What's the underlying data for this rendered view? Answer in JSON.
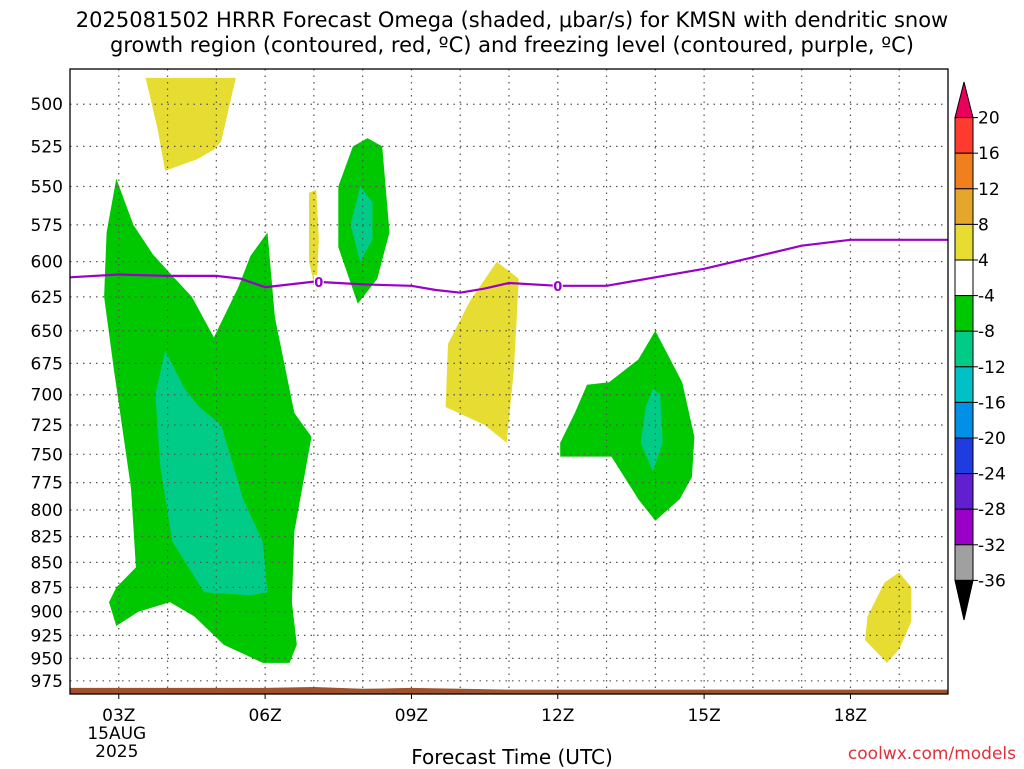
{
  "title": {
    "line1": "2025081502 HRRR Forecast Omega (shaded, μbar/s) for KMSN with dendritic snow",
    "line2": "growth region (contoured, red, ºC) and freezing level (contoured, purple, ºC)"
  },
  "credit": "coolwx.com/models",
  "chart_data": {
    "type": "contour",
    "title": "2025081502 HRRR Forecast Omega (shaded, μbar/s) for KMSN with dendritic snow growth region (contoured, red, ºC) and freezing level (contoured, purple, ºC)",
    "xlabel": "Forecast Time (UTC)",
    "ylabel": "",
    "x_ticks": [
      {
        "hour": 3,
        "label": "03Z",
        "sub": [
          "15AUG",
          "2025"
        ]
      },
      {
        "hour": 6,
        "label": "06Z",
        "sub": []
      },
      {
        "hour": 9,
        "label": "09Z",
        "sub": []
      },
      {
        "hour": 12,
        "label": "12Z",
        "sub": []
      },
      {
        "hour": 15,
        "label": "15Z",
        "sub": []
      },
      {
        "hour": 18,
        "label": "18Z",
        "sub": []
      }
    ],
    "xlim": [
      2.0,
      20.0
    ],
    "y_ticks": [
      500,
      525,
      550,
      575,
      600,
      625,
      650,
      675,
      700,
      725,
      750,
      775,
      800,
      825,
      850,
      875,
      900,
      925,
      950,
      975
    ],
    "ylim": [
      480,
      990
    ],
    "y_scale": "log-pressure",
    "grid": true,
    "colorbar": {
      "levels": [
        20,
        16,
        12,
        8,
        4,
        -4,
        -8,
        -12,
        -16,
        -20,
        -24,
        -28,
        -32,
        -36
      ],
      "colors": [
        "#e8005a",
        "#ff3b30",
        "#f07f1e",
        "#e6a62c",
        "#e6dc32",
        "#ffffff",
        "#00c800",
        "#00cc88",
        "#00c0c8",
        "#0090e8",
        "#1e3ce0",
        "#6020d0",
        "#9a00c8",
        "#a0a0a0",
        "#000000"
      ]
    },
    "omega_regions": [
      {
        "level": "4 to 8",
        "color": "#e6dc32",
        "points": [
          [
            3.55,
            485
          ],
          [
            5.4,
            485
          ],
          [
            5.1,
            522
          ],
          [
            4.95,
            527
          ],
          [
            4.6,
            533
          ],
          [
            3.95,
            540
          ],
          [
            3.8,
            515
          ]
        ]
      },
      {
        "level": "4 to 8",
        "color": "#e6dc32",
        "points": [
          [
            6.9,
            554
          ],
          [
            7.05,
            552
          ],
          [
            7.1,
            585
          ],
          [
            7.05,
            622
          ],
          [
            6.9,
            600
          ]
        ]
      },
      {
        "level": "4 to 8",
        "color": "#e6dc32",
        "points": [
          [
            10.75,
            600
          ],
          [
            11.2,
            612
          ],
          [
            11.1,
            680
          ],
          [
            10.95,
            740
          ],
          [
            10.5,
            725
          ],
          [
            9.7,
            710
          ],
          [
            9.75,
            660
          ],
          [
            10.2,
            628
          ]
        ]
      },
      {
        "level": "4 to 8",
        "color": "#e6dc32",
        "points": [
          [
            19.0,
            860
          ],
          [
            19.25,
            875
          ],
          [
            19.25,
            910
          ],
          [
            19.0,
            940
          ],
          [
            18.75,
            955
          ],
          [
            18.3,
            930
          ],
          [
            18.35,
            905
          ],
          [
            18.7,
            870
          ]
        ]
      },
      {
        "level": "-4 to -8",
        "color": "#00c800",
        "points": [
          [
            2.95,
            545
          ],
          [
            3.3,
            575
          ],
          [
            3.7,
            595
          ],
          [
            4.1,
            610
          ],
          [
            4.5,
            625
          ],
          [
            4.95,
            655
          ],
          [
            5.45,
            618
          ],
          [
            5.7,
            596
          ],
          [
            6.05,
            580
          ],
          [
            6.2,
            640
          ],
          [
            6.6,
            715
          ],
          [
            6.95,
            735
          ],
          [
            6.6,
            820
          ],
          [
            6.55,
            890
          ],
          [
            6.65,
            935
          ],
          [
            6.5,
            955
          ],
          [
            5.95,
            955
          ],
          [
            5.15,
            935
          ],
          [
            4.55,
            905
          ],
          [
            4.05,
            890
          ],
          [
            3.4,
            900
          ],
          [
            2.95,
            915
          ],
          [
            2.8,
            890
          ],
          [
            2.95,
            875
          ],
          [
            3.35,
            855
          ],
          [
            3.25,
            780
          ],
          [
            2.9,
            680
          ],
          [
            2.7,
            625
          ],
          [
            2.75,
            580
          ]
        ]
      },
      {
        "level": "-4 to -8",
        "color": "#00c800",
        "points": [
          [
            8.1,
            520
          ],
          [
            8.4,
            525
          ],
          [
            8.55,
            580
          ],
          [
            8.3,
            612
          ],
          [
            7.9,
            630
          ],
          [
            7.5,
            590
          ],
          [
            7.5,
            550
          ],
          [
            7.8,
            525
          ]
        ]
      },
      {
        "level": "-4 to -8",
        "color": "#00c800",
        "points": [
          [
            14.0,
            650
          ],
          [
            14.55,
            690
          ],
          [
            14.8,
            735
          ],
          [
            14.75,
            770
          ],
          [
            14.5,
            790
          ],
          [
            14.0,
            810
          ],
          [
            13.65,
            790
          ],
          [
            13.1,
            752
          ],
          [
            12.05,
            752
          ],
          [
            12.05,
            740
          ],
          [
            12.35,
            715
          ],
          [
            12.6,
            692
          ],
          [
            13.05,
            690
          ],
          [
            13.65,
            672
          ]
        ]
      },
      {
        "level": "-8 to -12",
        "color": "#00cc88",
        "points": [
          [
            3.95,
            665
          ],
          [
            4.35,
            695
          ],
          [
            4.65,
            710
          ],
          [
            5.1,
            725
          ],
          [
            5.55,
            790
          ],
          [
            5.95,
            830
          ],
          [
            6.05,
            880
          ],
          [
            5.7,
            883
          ],
          [
            4.75,
            880
          ],
          [
            4.1,
            830
          ],
          [
            3.85,
            760
          ],
          [
            3.75,
            700
          ]
        ]
      },
      {
        "level": "-8 to -12",
        "color": "#00cc88",
        "points": [
          [
            7.95,
            550
          ],
          [
            8.2,
            560
          ],
          [
            8.2,
            585
          ],
          [
            7.95,
            600
          ],
          [
            7.75,
            575
          ]
        ]
      },
      {
        "level": "-8 to -12",
        "color": "#00cc88",
        "points": [
          [
            13.95,
            695
          ],
          [
            14.1,
            700
          ],
          [
            14.15,
            740
          ],
          [
            13.95,
            765
          ],
          [
            13.7,
            740
          ],
          [
            13.8,
            710
          ]
        ]
      }
    ],
    "freezing_level": {
      "value": 0,
      "label": "0",
      "hours": [
        2.0,
        3.0,
        4.0,
        5.0,
        5.5,
        6.0,
        7.0,
        8.0,
        9.0,
        9.5,
        10.0,
        10.5,
        11.0,
        12.0,
        13.0,
        14.0,
        15.0,
        16.0,
        17.0,
        18.0,
        19.0,
        20.0
      ],
      "pressure": [
        611,
        609,
        610,
        610,
        612,
        618,
        614,
        616,
        617,
        620,
        622,
        619,
        615,
        617,
        617,
        611,
        605,
        597,
        589,
        585,
        585,
        585
      ],
      "label_hours": [
        7.1,
        12.0
      ]
    },
    "surface_band": {
      "color": "#a0522d",
      "hours": [
        2.0,
        5.5,
        6.0,
        7.0,
        7.5,
        8.0,
        9.0,
        10.0,
        11.0,
        20.0
      ],
      "pressure": [
        983,
        983,
        983,
        982,
        983,
        984,
        983,
        984,
        985,
        985
      ]
    }
  }
}
